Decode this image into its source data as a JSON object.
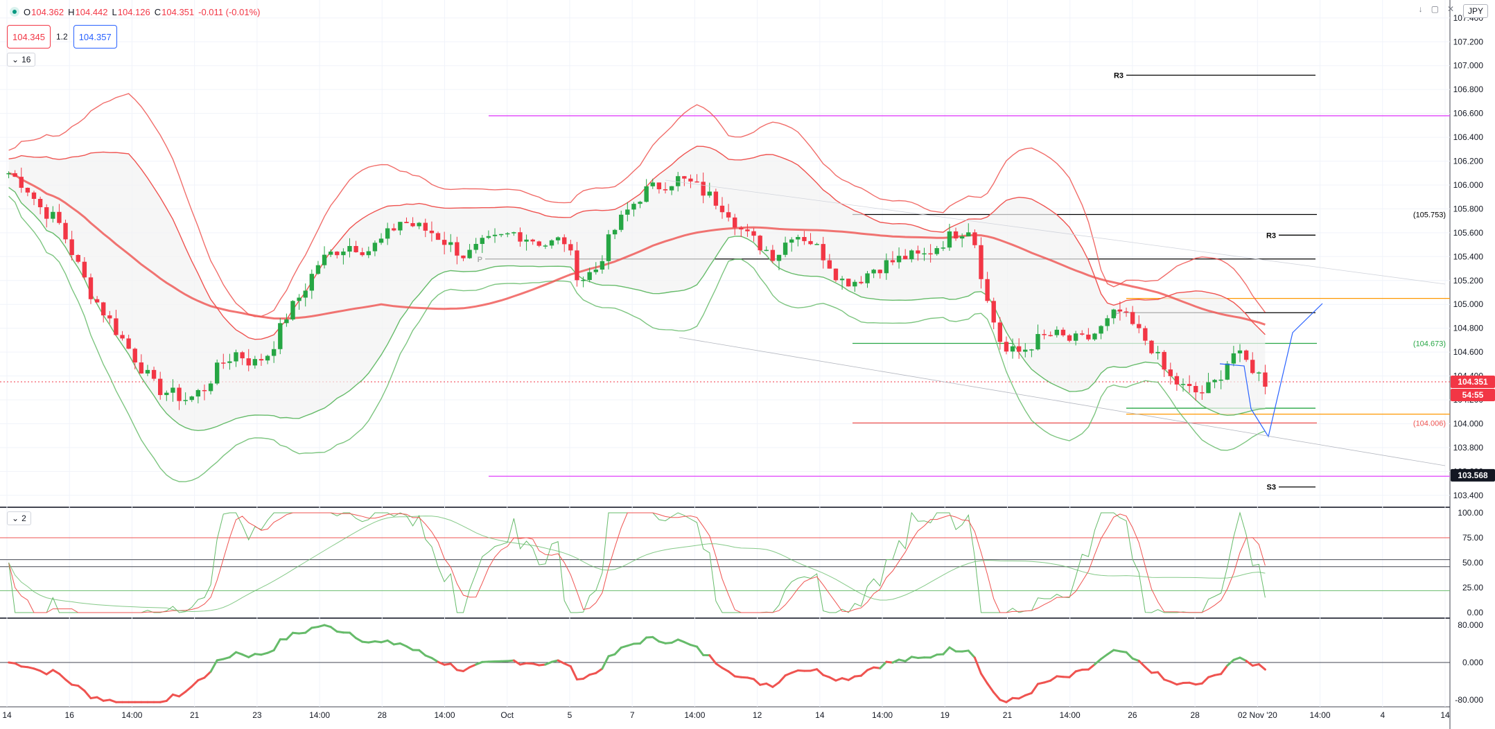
{
  "header": {
    "ohlc": {
      "open_label": "O",
      "open": "104.362",
      "high_label": "H",
      "high": "104.442",
      "low_label": "L",
      "low": "104.126",
      "close_label": "C",
      "close": "104.351",
      "change": "-0.011 (-0.01%)"
    },
    "bid": "104.345",
    "spread": "1.2",
    "ask": "104.357",
    "main_legend_count": "16",
    "osc_legend_count": "2",
    "currency": "JPY",
    "top_icons": [
      "arrow-down-icon",
      "fullscreen-icon",
      "close-icon"
    ]
  },
  "colors": {
    "bull": "#26a644",
    "bear": "#f23645",
    "band_red": "#ef5350",
    "band_green": "#66bb6a",
    "pivot": "#000000",
    "magenta": "#e040fb",
    "orange": "#ff9800",
    "trend_blue": "#2962ff",
    "osc_red": "#ef5350",
    "osc_green": "#66bb6a"
  },
  "chart_data": [
    {
      "type": "candlestick",
      "yticks": [
        "107.400",
        "107.200",
        "107.000",
        "106.800",
        "106.600",
        "106.400",
        "106.200",
        "106.000",
        "105.800",
        "105.600",
        "105.400",
        "105.200",
        "105.000",
        "104.800",
        "104.600",
        "104.400",
        "104.200",
        "104.000",
        "103.800",
        "103.600",
        "103.400"
      ],
      "ylim": [
        103.3,
        107.55
      ],
      "xticks": [
        "14",
        "16",
        "14:00",
        "21",
        "23",
        "14:00",
        "28",
        "14:00",
        "Oct",
        "5",
        "7",
        "14:00",
        "12",
        "14",
        "14:00",
        "19",
        "21",
        "14:00",
        "26",
        "28",
        "02 Nov '20",
        "14:00",
        "4",
        "14"
      ],
      "ohlc_close_path": [
        106.1,
        106.0,
        105.8,
        105.7,
        105.4,
        105.1,
        104.9,
        104.7,
        104.5,
        104.3,
        104.25,
        104.2,
        104.3,
        104.5,
        104.6,
        104.5,
        104.6,
        104.9,
        105.1,
        105.35,
        105.45,
        105.5,
        105.45,
        105.55,
        105.7,
        105.65,
        105.6,
        105.5,
        105.4,
        105.5,
        105.55,
        105.6,
        105.55,
        105.5,
        105.55,
        105.2,
        105.3,
        105.6,
        105.8,
        105.95,
        106.0,
        106.05,
        106.0,
        105.9,
        105.8,
        105.6,
        105.5,
        105.4,
        105.6,
        105.55,
        105.4,
        105.2,
        105.2,
        105.3,
        105.35,
        105.4,
        105.4,
        105.5,
        105.6,
        105.65,
        105.0,
        104.6,
        104.6,
        104.7,
        104.75,
        104.7,
        104.7,
        104.8,
        104.95,
        104.8,
        104.65,
        104.4,
        104.3,
        104.25,
        104.35,
        104.6,
        104.5,
        104.35
      ],
      "candles_count": 200,
      "price_labels": {
        "last": "104.351",
        "countdown": "54:55",
        "crosshair": "103.568"
      },
      "levels": [
        {
          "label": "R3",
          "value": 106.92,
          "color": "#000000"
        },
        {
          "label": "R3",
          "value": 105.58,
          "color": "#000000"
        },
        {
          "label": "P",
          "value": 105.38,
          "color": "#000000"
        },
        {
          "label": "P",
          "value": 104.93,
          "color": "#000000"
        },
        {
          "label": "S3",
          "value": 103.47,
          "color": "#000000"
        },
        {
          "label": "",
          "value": 106.58,
          "color": "#e040fb"
        },
        {
          "label": "",
          "value": 103.56,
          "color": "#e040fb"
        },
        {
          "label": "(105.753)",
          "value": 105.753,
          "color": "#000000"
        },
        {
          "label": "(104.673)",
          "value": 104.673,
          "color": "#26a644"
        },
        {
          "label": "(104.006)",
          "value": 104.006,
          "color": "#ef5350"
        },
        {
          "label": "",
          "value": 105.05,
          "color": "#ff9800"
        },
        {
          "label": "",
          "value": 104.08,
          "color": "#ff9800"
        },
        {
          "label": "",
          "value": 104.13,
          "color": "#26a644"
        }
      ]
    },
    {
      "type": "line",
      "yticks": [
        "100.00",
        "75.00",
        "50.00",
        "25.00",
        "0.00"
      ],
      "ylim": [
        0,
        100
      ],
      "levels": [
        75,
        53,
        46,
        22
      ]
    },
    {
      "type": "line",
      "yticks": [
        "80.000",
        "0.000",
        "-80.000"
      ],
      "ylim": [
        -95,
        95
      ]
    }
  ]
}
